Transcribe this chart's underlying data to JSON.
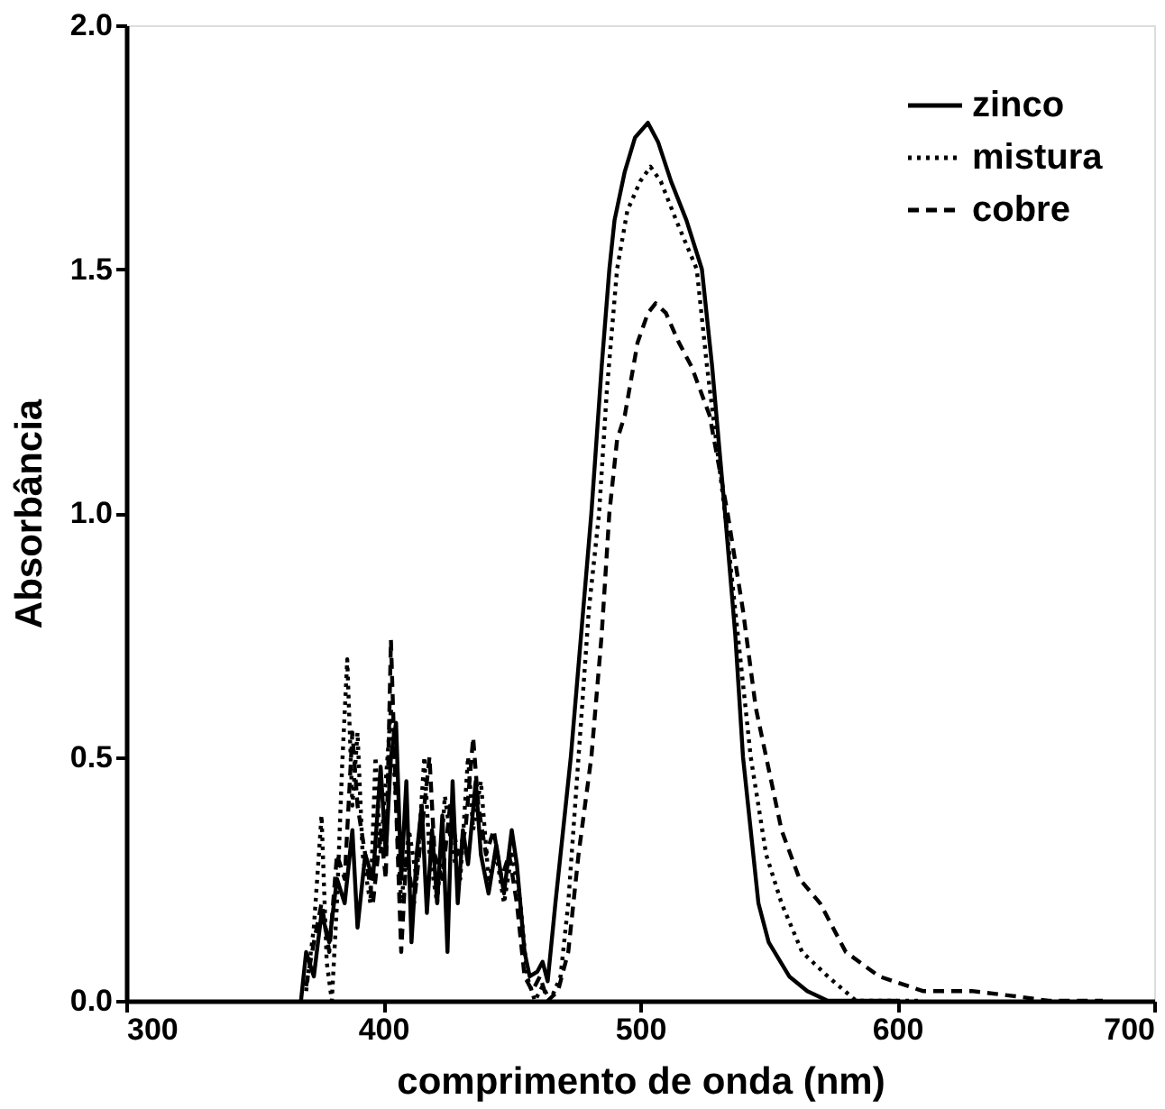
{
  "chart_data": {
    "type": "line",
    "xlabel": "comprimento de onda (nm)",
    "ylabel": "Absorbância",
    "xlim": [
      300,
      700
    ],
    "xticks": [
      300,
      400,
      500,
      600,
      700
    ],
    "ylim": [
      0,
      2.0
    ],
    "yticks": [
      {
        "value": 0,
        "label": "0.0"
      },
      {
        "value": 0.5,
        "label": "0.5"
      },
      {
        "value": 1.0,
        "label": "1.0"
      },
      {
        "value": 1.5,
        "label": "1.5"
      },
      {
        "value": 2.0,
        "label": "2.0"
      }
    ],
    "grid": false,
    "legend": "top right",
    "marker": "none",
    "series": [
      {
        "name": "zinco",
        "color": "#000000",
        "line_style": "solid",
        "x": [
          368,
          370,
          373,
          376,
          379,
          382,
          385,
          388,
          390,
          393,
          396,
          399,
          401,
          403,
          405,
          407,
          409,
          411,
          413,
          415,
          417,
          419,
          421,
          423,
          425,
          427,
          429,
          431,
          433,
          436,
          438,
          441,
          444,
          447,
          450,
          452,
          455,
          457,
          460,
          462,
          464,
          467,
          470,
          473,
          477,
          481,
          485,
          488,
          490,
          494,
          498,
          503,
          507,
          512,
          518,
          524,
          528,
          533,
          537,
          540,
          543,
          546,
          550,
          558,
          565,
          573,
          600
        ],
        "values": [
          0,
          0.1,
          0.05,
          0.18,
          0.12,
          0.25,
          0.2,
          0.35,
          0.15,
          0.3,
          0.25,
          0.48,
          0.3,
          0.5,
          0.57,
          0.25,
          0.45,
          0.12,
          0.3,
          0.4,
          0.18,
          0.35,
          0.2,
          0.38,
          0.1,
          0.45,
          0.2,
          0.35,
          0.28,
          0.45,
          0.3,
          0.22,
          0.32,
          0.22,
          0.35,
          0.28,
          0.1,
          0.05,
          0.06,
          0.08,
          0.04,
          0.2,
          0.35,
          0.5,
          0.75,
          1.0,
          1.3,
          1.5,
          1.6,
          1.7,
          1.77,
          1.8,
          1.76,
          1.68,
          1.6,
          1.5,
          1.3,
          1.0,
          0.75,
          0.5,
          0.35,
          0.2,
          0.12,
          0.05,
          0.02,
          0,
          0
        ]
      },
      {
        "name": "mistura",
        "color": "#000000",
        "line_style": "dotted",
        "x": [
          370,
          373,
          376,
          378,
          380,
          382,
          384,
          386,
          388,
          390,
          392,
          395,
          397,
          399,
          401,
          403,
          405,
          407,
          410,
          413,
          416,
          418,
          421,
          424,
          427,
          430,
          433,
          435,
          438,
          441,
          444,
          447,
          450,
          453,
          456,
          459,
          462,
          465,
          469,
          472,
          476,
          480,
          484,
          487,
          491,
          495,
          500,
          504,
          508,
          514,
          522,
          526,
          533,
          538,
          543,
          549,
          555,
          563,
          573,
          584,
          610
        ],
        "values": [
          0.02,
          0.15,
          0.38,
          0.08,
          0,
          0.2,
          0.48,
          0.7,
          0.4,
          0.55,
          0.3,
          0.2,
          0.5,
          0.3,
          0.45,
          0.6,
          0.4,
          0.2,
          0.35,
          0.25,
          0.5,
          0.3,
          0.2,
          0.42,
          0.3,
          0.25,
          0.5,
          0.35,
          0.45,
          0.25,
          0.3,
          0.2,
          0.3,
          0.22,
          0.05,
          0,
          0.03,
          0,
          0.05,
          0.2,
          0.5,
          0.8,
          1.0,
          1.25,
          1.5,
          1.62,
          1.68,
          1.71,
          1.68,
          1.6,
          1.5,
          1.3,
          1.0,
          0.75,
          0.5,
          0.3,
          0.2,
          0.1,
          0.05,
          0,
          0
        ]
      },
      {
        "name": "cobre",
        "color": "#000000",
        "line_style": "dashed",
        "x": [
          370,
          373,
          376,
          379,
          382,
          385,
          388,
          390,
          393,
          396,
          399,
          401,
          403,
          405,
          407,
          409,
          412,
          415,
          418,
          420,
          423,
          426,
          429,
          432,
          435,
          437,
          440,
          443,
          446,
          449,
          452,
          455,
          458,
          461,
          464,
          468,
          472,
          476,
          481,
          485,
          488,
          491,
          494,
          499,
          503,
          506,
          510,
          515,
          520,
          527,
          534,
          540,
          545,
          549,
          555,
          562,
          570,
          580,
          593,
          610,
          629,
          645,
          659,
          680
        ],
        "values": [
          0.03,
          0.12,
          0.2,
          0.1,
          0.3,
          0.25,
          0.55,
          0.4,
          0.3,
          0.2,
          0.35,
          0.25,
          0.74,
          0.4,
          0.1,
          0.3,
          0.2,
          0.35,
          0.5,
          0.3,
          0.25,
          0.4,
          0.3,
          0.35,
          0.54,
          0.4,
          0.3,
          0.35,
          0.25,
          0.3,
          0.2,
          0.05,
          0.02,
          0.05,
          0,
          0.02,
          0.1,
          0.3,
          0.5,
          0.75,
          1.0,
          1.15,
          1.2,
          1.35,
          1.41,
          1.43,
          1.41,
          1.35,
          1.3,
          1.2,
          1.0,
          0.8,
          0.6,
          0.5,
          0.35,
          0.25,
          0.2,
          0.1,
          0.05,
          0.02,
          0.02,
          0.01,
          0,
          0
        ]
      }
    ]
  }
}
